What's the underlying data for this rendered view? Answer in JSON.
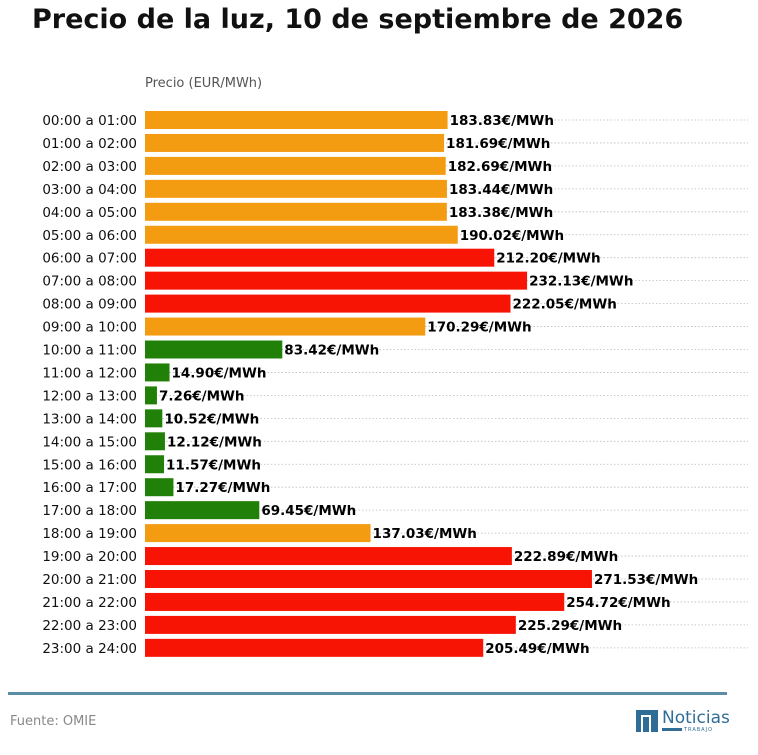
{
  "title": "Precio de la luz, 10 de septiembre de 2026",
  "source": "Fuente: OMIE",
  "logo": {
    "name": "Noticias",
    "sub": "TRABAJO"
  },
  "colors": {
    "high": "#f81405",
    "medium": "#f39c12",
    "low": "#218008",
    "footer_line": "#5b8ea6",
    "brand": "#2f6d96"
  },
  "chart_data": {
    "type": "bar",
    "orientation": "horizontal",
    "axis_title": "Precio (EUR/MWh)",
    "unit_suffix": "€/MWh",
    "grid": "dotted horizontal",
    "xlim": [
      0,
      290
    ],
    "categories": [
      "00:00 a 01:00",
      "01:00 a 02:00",
      "02:00 a 03:00",
      "03:00 a 04:00",
      "04:00 a 05:00",
      "05:00 a 06:00",
      "06:00 a 07:00",
      "07:00 a 08:00",
      "08:00 a 09:00",
      "09:00 a 10:00",
      "10:00 a 11:00",
      "11:00 a 12:00",
      "12:00 a 13:00",
      "13:00 a 14:00",
      "14:00 a 15:00",
      "15:00 a 16:00",
      "16:00 a 17:00",
      "17:00 a 18:00",
      "18:00 a 19:00",
      "19:00 a 20:00",
      "20:00 a 21:00",
      "21:00 a 22:00",
      "22:00 a 23:00",
      "23:00 a 24:00"
    ],
    "values": [
      183.83,
      181.69,
      182.69,
      183.44,
      183.38,
      190.02,
      212.2,
      232.13,
      222.05,
      170.29,
      83.42,
      14.9,
      7.26,
      10.52,
      12.12,
      11.57,
      17.27,
      69.45,
      137.03,
      222.89,
      271.53,
      254.72,
      225.29,
      205.49
    ],
    "value_labels": [
      "183.83€/MWh",
      "181.69€/MWh",
      "182.69€/MWh",
      "183.44€/MWh",
      "183.38€/MWh",
      "190.02€/MWh",
      "212.20€/MWh",
      "232.13€/MWh",
      "222.05€/MWh",
      "170.29€/MWh",
      "83.42€/MWh",
      "14.90€/MWh",
      "7.26€/MWh",
      "10.52€/MWh",
      "12.12€/MWh",
      "11.57€/MWh",
      "17.27€/MWh",
      "69.45€/MWh",
      "137.03€/MWh",
      "222.89€/MWh",
      "271.53€/MWh",
      "254.72€/MWh",
      "225.29€/MWh",
      "205.49€/MWh"
    ],
    "levels": [
      "medium",
      "medium",
      "medium",
      "medium",
      "medium",
      "medium",
      "high",
      "high",
      "high",
      "medium",
      "low",
      "low",
      "low",
      "low",
      "low",
      "low",
      "low",
      "low",
      "medium",
      "high",
      "high",
      "high",
      "high",
      "high"
    ]
  }
}
